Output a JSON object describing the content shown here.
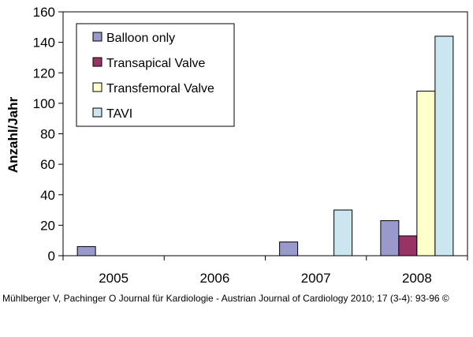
{
  "chart_data": {
    "type": "bar",
    "title": "",
    "xlabel": "",
    "ylabel": "Anzahl/Jahr",
    "ylim": [
      0,
      160
    ],
    "yticks": [
      0,
      20,
      40,
      60,
      80,
      100,
      120,
      140,
      160
    ],
    "categories": [
      "2005",
      "2006",
      "2007",
      "2008"
    ],
    "legend_position": "top-left",
    "series": [
      {
        "name": "Balloon only",
        "color": "#9999cc",
        "values": [
          6,
          0,
          9,
          23
        ]
      },
      {
        "name": "Transapical Valve",
        "color": "#993366",
        "values": [
          0,
          0,
          0,
          13
        ]
      },
      {
        "name": "Transfemoral Valve",
        "color": "#ffffcc",
        "values": [
          0,
          0,
          0,
          108
        ]
      },
      {
        "name": "TAVI",
        "color": "#cce6f0",
        "values": [
          0,
          0,
          30,
          144
        ]
      }
    ]
  },
  "caption": "Mühlberger V, Pachinger O Journal für Kardiologie - Austrian Journal of Cardiology 2010; 17 (3-4): 93-96 ©"
}
